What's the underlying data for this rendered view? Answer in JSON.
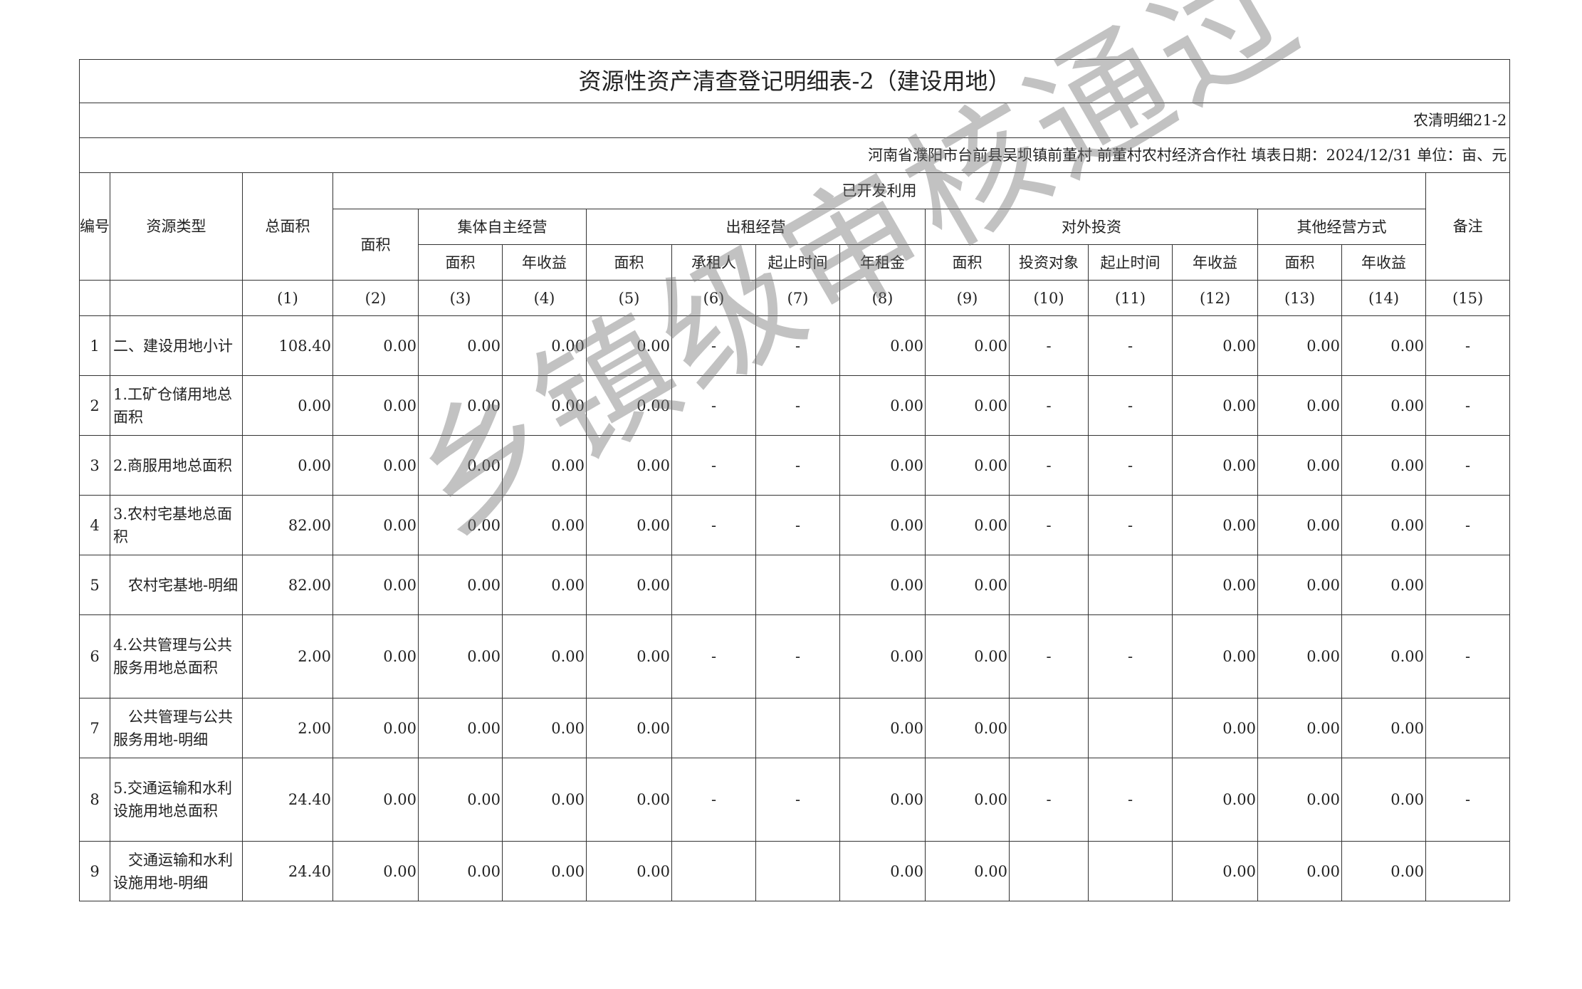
{
  "title": "资源性资产清查登记明细表-2（建设用地）",
  "form_code": "农清明细21-2",
  "info": "河南省濮阳市台前县吴坝镇前董村  前董村农村经济合作社  填表日期：2024/12/31  单位：亩、元",
  "headers": {
    "id": "编号",
    "type": "资源类型",
    "total_area": "总面积",
    "developed": "已开发利用",
    "area": "面积",
    "collective": "集体自主经营",
    "lease": "出租经营",
    "invest": "对外投资",
    "other": "其他经营方式",
    "remark": "备注",
    "sub": [
      "面积",
      "年收益",
      "面积",
      "承租人",
      "起止时间",
      "年租金",
      "面积",
      "投资对象",
      "起止时间",
      "年收益",
      "面积",
      "年收益"
    ],
    "codes": [
      "(1)",
      "(2)",
      "(3)",
      "(4)",
      "(5)",
      "(6)",
      "(7)",
      "(8)",
      "(9)",
      "(10)",
      "(11)",
      "(12)",
      "(13)",
      "(14)",
      "(15)"
    ]
  },
  "rows": [
    {
      "id": "1",
      "type": "二、建设用地小计",
      "values": [
        "108.40",
        "0.00",
        "0.00",
        "0.00",
        "0.00",
        "-",
        "-",
        "0.00",
        "0.00",
        "-",
        "-",
        "0.00",
        "0.00",
        "0.00",
        "-"
      ]
    },
    {
      "id": "2",
      "type": "1.工矿仓储用地总面积",
      "values": [
        "0.00",
        "0.00",
        "0.00",
        "0.00",
        "0.00",
        "-",
        "-",
        "0.00",
        "0.00",
        "-",
        "-",
        "0.00",
        "0.00",
        "0.00",
        "-"
      ]
    },
    {
      "id": "3",
      "type": "2.商服用地总面积",
      "values": [
        "0.00",
        "0.00",
        "0.00",
        "0.00",
        "0.00",
        "-",
        "-",
        "0.00",
        "0.00",
        "-",
        "-",
        "0.00",
        "0.00",
        "0.00",
        "-"
      ]
    },
    {
      "id": "4",
      "type": "3.农村宅基地总面积",
      "values": [
        "82.00",
        "0.00",
        "0.00",
        "0.00",
        "0.00",
        "-",
        "-",
        "0.00",
        "0.00",
        "-",
        "-",
        "0.00",
        "0.00",
        "0.00",
        "-"
      ]
    },
    {
      "id": "5",
      "type": "　农村宅基地-明细",
      "values": [
        "82.00",
        "0.00",
        "0.00",
        "0.00",
        "0.00",
        "",
        "",
        "0.00",
        "0.00",
        "",
        "",
        "0.00",
        "0.00",
        "0.00",
        ""
      ]
    },
    {
      "id": "6",
      "type": "4.公共管理与公共服务用地总面积",
      "values": [
        "2.00",
        "0.00",
        "0.00",
        "0.00",
        "0.00",
        "-",
        "-",
        "0.00",
        "0.00",
        "-",
        "-",
        "0.00",
        "0.00",
        "0.00",
        "-"
      ]
    },
    {
      "id": "7",
      "type": "　公共管理与公共服务用地-明细",
      "values": [
        "2.00",
        "0.00",
        "0.00",
        "0.00",
        "0.00",
        "",
        "",
        "0.00",
        "0.00",
        "",
        "",
        "0.00",
        "0.00",
        "0.00",
        ""
      ]
    },
    {
      "id": "8",
      "type": "5.交通运输和水利设施用地总面积",
      "values": [
        "24.40",
        "0.00",
        "0.00",
        "0.00",
        "0.00",
        "-",
        "-",
        "0.00",
        "0.00",
        "-",
        "-",
        "0.00",
        "0.00",
        "0.00",
        "-"
      ]
    },
    {
      "id": "9",
      "type": "　交通运输和水利设施用地-明细",
      "values": [
        "24.40",
        "0.00",
        "0.00",
        "0.00",
        "0.00",
        "",
        "",
        "0.00",
        "0.00",
        "",
        "",
        "0.00",
        "0.00",
        "0.00",
        ""
      ]
    }
  ],
  "watermark": "乡镇级审核通过"
}
